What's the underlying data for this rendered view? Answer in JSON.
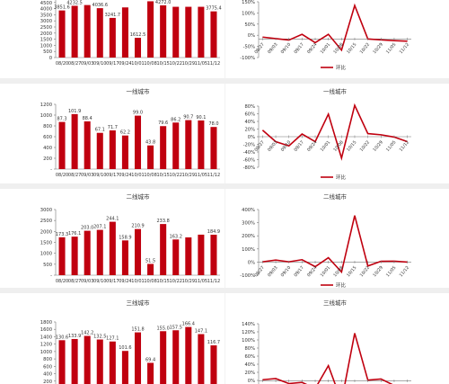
{
  "chart_data": [
    {
      "type": "bar",
      "title": "",
      "ylim": [
        0,
        5000
      ],
      "yticks": [
        "0",
        "500",
        "1000",
        "1500",
        "2000",
        "2500",
        "3000",
        "3500",
        "4000",
        "4500",
        "5000"
      ],
      "categories": [
        "08/20",
        "08/27",
        "09/03",
        "09/10",
        "09/17",
        "09/24",
        "10/01",
        "10/08",
        "10/15",
        "10/22",
        "10/29",
        "11/05",
        "11/12"
      ],
      "values": [
        3851.6,
        4232.5,
        4293,
        4036.6,
        3241.7,
        4100,
        1612.5,
        4600,
        4272.0,
        4150,
        4150,
        4150,
        3775.4
      ],
      "data_labels": [
        "3851.6",
        "4232.5",
        "",
        "4036.6",
        "3241.7",
        "",
        "1612.5",
        "",
        "4272.0",
        "",
        "",
        "",
        "3775.4"
      ],
      "color": "#c0000f"
    },
    {
      "type": "line",
      "title": "",
      "ylim": [
        -100,
        200
      ],
      "yticks": [
        "-100%",
        "-50%",
        "0%",
        "50%",
        "100%",
        "150%"
      ],
      "x": [
        "08/27",
        "09/03",
        "09/10",
        "09/17",
        "09/24",
        "10/01",
        "10/08",
        "10/15",
        "10/22",
        "10/29",
        "11/05",
        "11/12"
      ],
      "values": [
        10,
        2,
        -6,
        25,
        -20,
        25,
        -60,
        180,
        0,
        -5,
        -9,
        -12
      ],
      "series_name": "环比",
      "color": "#c0000f"
    },
    {
      "type": "bar",
      "title": "一线城市",
      "ylim": [
        0,
        1200
      ],
      "yticks": [
        "-",
        "200",
        "400",
        "600",
        "800",
        "1000",
        "1200"
      ],
      "categories": [
        "08/20",
        "08/27",
        "09/03",
        "09/10",
        "09/17",
        "09/24",
        "10/01",
        "10/08",
        "10/15",
        "10/22",
        "10/29",
        "11/05",
        "11/12"
      ],
      "values": [
        87.3,
        101.9,
        88.4,
        67.1,
        71.7,
        62.2,
        99.0,
        43.8,
        79.6,
        86.2,
        90.7,
        90.1,
        78.0
      ],
      "data_labels": [
        "87.3",
        "101.9",
        "88.4",
        "67.1",
        "71.7",
        "62.2",
        "99.0",
        "43.8",
        "79.6",
        "86.2",
        "90.7",
        "90.1",
        "78.0"
      ],
      "display_scale": 10,
      "color": "#c0000f"
    },
    {
      "type": "line",
      "title": "一线城市",
      "ylim": [
        -80,
        80
      ],
      "yticks": [
        "-80%",
        "-60%",
        "-40%",
        "-20%",
        "0%",
        "20%",
        "40%",
        "60%",
        "80%"
      ],
      "x": [
        "08/27",
        "09/03",
        "09/10",
        "09/17",
        "09/24",
        "10/01",
        "10/08",
        "10/15",
        "10/22",
        "10/29",
        "11/05",
        "11/12"
      ],
      "values": [
        17,
        -13,
        -24,
        7,
        -13,
        59,
        -56,
        82,
        8,
        5,
        -1,
        -13
      ],
      "series_name": "环比",
      "color": "#c0000f"
    },
    {
      "type": "bar",
      "title": "二线城市",
      "ylim": [
        0,
        3000
      ],
      "yticks": [
        "-",
        "500",
        "1000",
        "1500",
        "2000",
        "2500",
        "3000"
      ],
      "categories": [
        "08/20",
        "08/27",
        "09/03",
        "09/10",
        "09/17",
        "09/24",
        "10/01",
        "10/08",
        "10/15",
        "10/22",
        "10/29",
        "11/05",
        "11/12"
      ],
      "values": [
        173.3,
        176.1,
        203.0,
        207.1,
        244.1,
        158.9,
        210.9,
        51.5,
        233.8,
        163.2,
        172.8,
        185.2,
        184.9
      ],
      "data_labels": [
        "173.3",
        "176.1",
        "203.0",
        "207.1",
        "244.1",
        "158.9",
        "210.9",
        "51.5",
        "233.8",
        "163.2",
        "",
        "",
        "184.9"
      ],
      "display_scale": 10,
      "color": "#c0000f"
    },
    {
      "type": "line",
      "title": "二线城市",
      "ylim": [
        -100,
        400
      ],
      "yticks": [
        "-100%",
        "0%",
        "100%",
        "200%",
        "300%",
        "400%"
      ],
      "x": [
        "08/27",
        "09/03",
        "09/10",
        "09/17",
        "09/24",
        "10/01",
        "10/08",
        "10/15",
        "10/22",
        "10/29",
        "11/05",
        "11/12"
      ],
      "values": [
        2,
        15,
        2,
        18,
        -35,
        33,
        -76,
        354,
        -30,
        6,
        7,
        0
      ],
      "series_name": "环比",
      "color": "#c0000f"
    },
    {
      "type": "bar",
      "title": "三线城市",
      "ylim": [
        0,
        1800
      ],
      "yticks": [
        "-",
        "200",
        "400",
        "600",
        "800",
        "1000",
        "1200",
        "1400",
        "1600",
        "1800"
      ],
      "categories": [
        "08/20",
        "08/27",
        "09/03",
        "09/10",
        "09/17",
        "09/24",
        "10/01",
        "10/08",
        "10/15",
        "10/22",
        "10/29",
        "11/05",
        "11/12"
      ],
      "values": [
        130.6,
        133.9,
        142.2,
        132.5,
        127.1,
        101.6,
        151.8,
        69.4,
        155.0,
        157.5,
        166.4,
        147.1,
        116.7
      ],
      "data_labels": [
        "130.6",
        "133.9",
        "142.2",
        "132.5",
        "127.1",
        "101.6",
        "151.8",
        "69.4",
        "155.0",
        "157.5",
        "166.4",
        "147.1",
        "116.7"
      ],
      "display_scale": 10,
      "color": "#c0000f"
    },
    {
      "type": "line",
      "title": "三线城市",
      "ylim": [
        -20,
        150
      ],
      "yticks": [
        "-20%",
        "0%",
        "20%",
        "40%",
        "60%",
        "80%",
        "100%",
        "120%",
        "140%"
      ],
      "x": [
        "08/27",
        "09/03",
        "09/10",
        "09/17",
        "09/24",
        "10/01",
        "10/08",
        "10/15",
        "10/22",
        "10/29",
        "11/05",
        "11/12"
      ],
      "values": [
        3,
        6,
        -7,
        -4,
        -20,
        40,
        -54,
        125,
        2,
        5,
        -12,
        -21
      ],
      "series_name": "环比",
      "color": "#c0000f"
    }
  ]
}
